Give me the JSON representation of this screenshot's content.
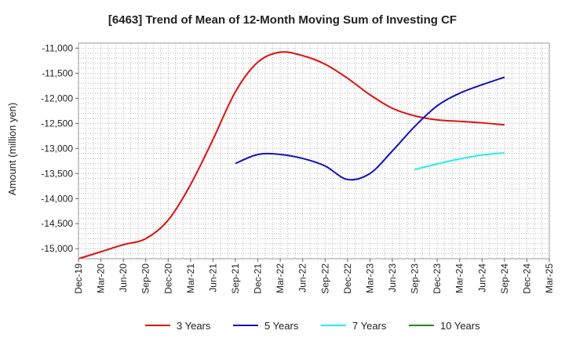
{
  "chart_data": {
    "type": "line",
    "title": "[6463]  Trend of Mean of 12-Month Moving Sum of Investing CF",
    "xlabel": "",
    "ylabel": "Amount (million yen)",
    "ylim": [
      -15200,
      -10900
    ],
    "yticks": [
      -11000,
      -11500,
      -12000,
      -12500,
      -13000,
      -13500,
      -14000,
      -14500,
      -15000
    ],
    "ytick_labels": [
      "-11,000",
      "-11,500",
      "-12,000",
      "-12,500",
      "-13,000",
      "-13,500",
      "-14,000",
      "-14,500",
      "-15,000"
    ],
    "categories": [
      "Dec-19",
      "Mar-20",
      "Jun-20",
      "Sep-20",
      "Dec-20",
      "Mar-21",
      "Jun-21",
      "Sep-21",
      "Dec-21",
      "Mar-22",
      "Jun-22",
      "Sep-22",
      "Dec-22",
      "Mar-23",
      "Jun-23",
      "Sep-23",
      "Dec-23",
      "Mar-24",
      "Jun-24",
      "Sep-24",
      "Dec-24",
      "Mar-25"
    ],
    "grid": true,
    "legend_position": "bottom",
    "series": [
      {
        "name": "3 Years",
        "color": "#dd1111",
        "values": [
          -15200,
          -15060,
          -14920,
          -14800,
          -14430,
          -13720,
          -12820,
          -11870,
          -11280,
          -11080,
          -11150,
          -11320,
          -11600,
          -11930,
          -12200,
          -12350,
          -12430,
          -12460,
          -12490,
          -12530,
          null,
          null
        ]
      },
      {
        "name": "5 Years",
        "color": "#1111bb",
        "values": [
          null,
          null,
          null,
          null,
          null,
          null,
          null,
          -13300,
          -13120,
          -13120,
          -13200,
          -13350,
          -13620,
          -13500,
          -13050,
          -12560,
          -12150,
          -11900,
          -11730,
          -11580,
          null,
          null
        ]
      },
      {
        "name": "7 Years",
        "color": "#22eeee",
        "values": [
          null,
          null,
          null,
          null,
          null,
          null,
          null,
          null,
          null,
          null,
          null,
          null,
          null,
          null,
          null,
          -13420,
          -13310,
          -13210,
          -13130,
          -13090,
          null,
          null
        ]
      },
      {
        "name": "10 Years",
        "color": "#228822",
        "values": [
          null,
          null,
          null,
          null,
          null,
          null,
          null,
          null,
          null,
          null,
          null,
          null,
          null,
          null,
          null,
          null,
          null,
          null,
          null,
          null,
          null,
          null
        ]
      }
    ]
  }
}
